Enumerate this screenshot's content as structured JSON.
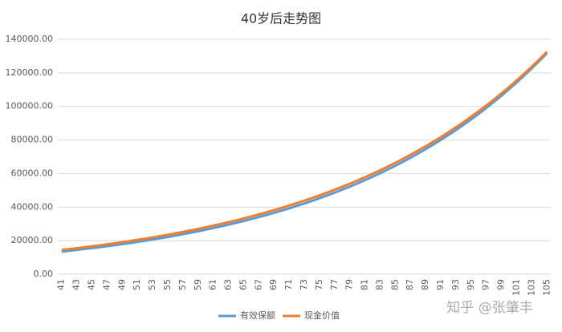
{
  "chart_data": {
    "type": "line",
    "title": "40岁后走势图",
    "categories": [
      41,
      null,
      43,
      null,
      45,
      null,
      47,
      null,
      49,
      null,
      51,
      null,
      53,
      null,
      55,
      null,
      57,
      null,
      59,
      null,
      61,
      null,
      63,
      null,
      65,
      null,
      67,
      null,
      69,
      null,
      71,
      null,
      73,
      null,
      75,
      null,
      77,
      null,
      79,
      null,
      81,
      null,
      83,
      null,
      85,
      null,
      87,
      null,
      89,
      null,
      91,
      null,
      93,
      null,
      95,
      null,
      97,
      null,
      99,
      null,
      101,
      null,
      103,
      null,
      105
    ],
    "series": [
      {
        "name": "有效保额",
        "color": "#5b9bd5",
        "values": [
          13500,
          13989,
          14496,
          15021,
          15566,
          16130,
          16714,
          17320,
          17948,
          18598,
          19272,
          19970,
          20694,
          21444,
          22221,
          23026,
          23861,
          24726,
          25622,
          26550,
          27512,
          28509,
          29542,
          30613,
          31722,
          32872,
          34063,
          35297,
          36576,
          37902,
          39275,
          40698,
          42173,
          43701,
          45285,
          46926,
          48627,
          50389,
          52215,
          54107,
          56068,
          58100,
          60205,
          62387,
          64648,
          66991,
          69418,
          71934,
          74541,
          77242,
          80041,
          82942,
          85948,
          89062,
          92290,
          95634,
          99100,
          102691,
          106412,
          110268,
          114264,
          118405,
          122696,
          127142,
          131749
        ]
      },
      {
        "name": "现金价值",
        "color": "#ed7d31",
        "values": [
          14500,
          15010,
          15538,
          16085,
          16651,
          17237,
          17843,
          18471,
          19121,
          19794,
          20490,
          21211,
          21957,
          22729,
          23529,
          24357,
          25214,
          26101,
          27019,
          27970,
          28954,
          29972,
          31026,
          32118,
          33248,
          34418,
          35629,
          36883,
          38181,
          39524,
          40915,
          42354,
          43844,
          45387,
          46984,
          48637,
          50348,
          52119,
          53953,
          55851,
          57816,
          59850,
          61956,
          64136,
          66393,
          68729,
          71147,
          73650,
          76241,
          78924,
          81701,
          84575,
          87551,
          90631,
          93820,
          97121,
          100538,
          104075,
          107737,
          111528,
          115452,
          119514,
          123719,
          128072,
          132578
        ]
      }
    ],
    "ylim": [
      0,
      140000
    ],
    "yticks": [
      {
        "value": 0,
        "label": "0.00"
      },
      {
        "value": 20000,
        "label": "20000.00"
      },
      {
        "value": 40000,
        "label": "40000.00"
      },
      {
        "value": 60000,
        "label": "60000.00"
      },
      {
        "value": 80000,
        "label": "80000.00"
      },
      {
        "value": 100000,
        "label": "100000.00"
      },
      {
        "value": 120000,
        "label": "120000.00"
      },
      {
        "value": 140000,
        "label": "140000.00"
      }
    ],
    "grid": true,
    "legend": "bottom",
    "watermark": "知乎 @张肇丰"
  }
}
